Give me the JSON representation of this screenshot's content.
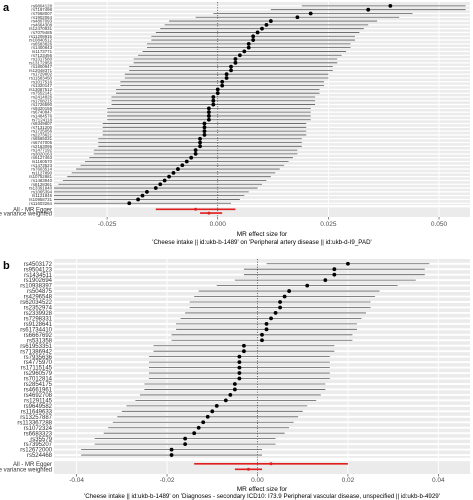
{
  "chart_data": [
    {
      "type": "scatter",
      "panel_label": "a",
      "x_ticks": [
        "-0.025",
        "0.000",
        "0.025",
        "0.050"
      ],
      "xlim": [
        -0.037,
        0.057
      ],
      "xlabel_line1": "MR effect size for",
      "xlabel_line2": "'Cheese intake || id:ukb-b-1489' on 'Peripheral artery disease || id:ukb-d-I9_PAD'",
      "legend": "none",
      "snps": [
        {
          "name": "rs9804128",
          "est": 0.039,
          "lo": 0.019,
          "hi": 0.056
        },
        {
          "name": "rs7197498",
          "est": 0.034,
          "lo": 0.012,
          "hi": 0.056
        },
        {
          "name": "rs7568007",
          "est": 0.021,
          "lo": -0.001,
          "hi": 0.044
        },
        {
          "name": "rs1902064",
          "est": 0.018,
          "lo": -0.005,
          "hi": 0.041
        },
        {
          "name": "rs4807093",
          "est": 0.012,
          "lo": -0.011,
          "hi": 0.036
        },
        {
          "name": "rs4664308",
          "est": 0.011,
          "lo": -0.012,
          "hi": 0.034
        },
        {
          "name": "rs12470931",
          "est": 0.01,
          "lo": -0.013,
          "hi": 0.033
        },
        {
          "name": "rs7079485",
          "est": 0.009,
          "lo": -0.014,
          "hi": 0.032
        },
        {
          "name": "rs11208915",
          "est": 0.008,
          "lo": -0.015,
          "hi": 0.031
        },
        {
          "name": "rs10840512",
          "est": 0.008,
          "lo": -0.015,
          "hi": 0.031
        },
        {
          "name": "rs6583826",
          "est": 0.007,
          "lo": -0.016,
          "hi": 0.03
        },
        {
          "name": "rs1400843",
          "est": 0.007,
          "lo": -0.016,
          "hi": 0.03
        },
        {
          "name": "rs1173771",
          "est": 0.006,
          "lo": -0.017,
          "hi": 0.029
        },
        {
          "name": "rs7123456",
          "est": 0.005,
          "lo": -0.018,
          "hi": 0.028
        },
        {
          "name": "rs1317580",
          "est": 0.004,
          "lo": -0.019,
          "hi": 0.027
        },
        {
          "name": "rs13172958",
          "est": 0.004,
          "lo": -0.019,
          "hi": 0.027
        },
        {
          "name": "rs1800947",
          "est": 0.003,
          "lo": -0.02,
          "hi": 0.026
        },
        {
          "name": "rs12048371",
          "est": 0.003,
          "lo": -0.02,
          "hi": 0.026
        },
        {
          "name": "rs1729802",
          "est": 0.002,
          "lo": -0.021,
          "hi": 0.025
        },
        {
          "name": "rs11583450",
          "est": 0.002,
          "lo": -0.021,
          "hi": 0.025
        },
        {
          "name": "rs1017516",
          "est": 0.001,
          "lo": -0.022,
          "hi": 0.024
        },
        {
          "name": "rs1320147",
          "est": 0.001,
          "lo": -0.022,
          "hi": 0.024
        },
        {
          "name": "rs13087512",
          "est": 0.0,
          "lo": -0.023,
          "hi": 0.023
        },
        {
          "name": "rs7552141",
          "est": 0.0,
          "lo": -0.023,
          "hi": 0.023
        },
        {
          "name": "rs2414826",
          "est": -0.001,
          "lo": -0.024,
          "hi": 0.022
        },
        {
          "name": "rs1708215",
          "est": -0.001,
          "lo": -0.024,
          "hi": 0.022
        },
        {
          "name": "rs1726590",
          "est": -0.001,
          "lo": -0.024,
          "hi": 0.022
        },
        {
          "name": "rs9320156",
          "est": -0.002,
          "lo": -0.025,
          "hi": 0.021
        },
        {
          "name": "rs6740847",
          "est": -0.002,
          "lo": -0.025,
          "hi": 0.021
        },
        {
          "name": "rs1484576",
          "est": -0.002,
          "lo": -0.025,
          "hi": 0.021
        },
        {
          "name": "rs7124118",
          "est": -0.002,
          "lo": -0.025,
          "hi": 0.021
        },
        {
          "name": "rs9349807",
          "est": -0.003,
          "lo": -0.026,
          "hi": 0.02
        },
        {
          "name": "rs7131200",
          "est": -0.003,
          "lo": -0.026,
          "hi": 0.02
        },
        {
          "name": "rs1725056",
          "est": -0.003,
          "lo": -0.026,
          "hi": 0.02
        },
        {
          "name": "rs2273621",
          "est": -0.003,
          "lo": -0.026,
          "hi": 0.02
        },
        {
          "name": "rs6585031",
          "est": -0.004,
          "lo": -0.027,
          "hi": 0.019
        },
        {
          "name": "rs6747005",
          "est": -0.004,
          "lo": -0.027,
          "hi": 0.019
        },
        {
          "name": "rs2163095",
          "est": -0.004,
          "lo": -0.027,
          "hi": 0.019
        },
        {
          "name": "rs1477192",
          "est": -0.005,
          "lo": -0.028,
          "hi": 0.018
        },
        {
          "name": "rs3020163",
          "est": -0.005,
          "lo": -0.028,
          "hi": 0.018
        },
        {
          "name": "rs6127463",
          "est": -0.006,
          "lo": -0.029,
          "hi": 0.017
        },
        {
          "name": "rs1160570",
          "est": -0.007,
          "lo": -0.03,
          "hi": 0.016
        },
        {
          "name": "rs1473523",
          "est": -0.008,
          "lo": -0.031,
          "hi": 0.015
        },
        {
          "name": "rs7603514",
          "est": -0.009,
          "lo": -0.032,
          "hi": 0.014
        },
        {
          "name": "rs1127890",
          "est": -0.01,
          "lo": -0.033,
          "hi": 0.013
        },
        {
          "name": "rs10752881",
          "est": -0.011,
          "lo": -0.034,
          "hi": 0.012
        },
        {
          "name": "rs1483940",
          "est": -0.012,
          "lo": -0.035,
          "hi": 0.011
        },
        {
          "name": "rs6128361",
          "est": -0.013,
          "lo": -0.036,
          "hi": 0.01
        },
        {
          "name": "rs13391840",
          "est": -0.014,
          "lo": -0.037,
          "hi": 0.009
        },
        {
          "name": "rs1065394",
          "est": -0.016,
          "lo": -0.037,
          "hi": 0.007
        },
        {
          "name": "rs1121845",
          "est": -0.017,
          "lo": -0.037,
          "hi": 0.006
        },
        {
          "name": "rs10958731",
          "est": -0.018,
          "lo": -0.037,
          "hi": 0.005
        },
        {
          "name": "rs11603264",
          "est": -0.02,
          "lo": -0.037,
          "hi": 0.003
        }
      ],
      "summary": [
        {
          "name": "All - MR Egger",
          "est": -0.005,
          "lo": -0.014,
          "hi": 0.004
        },
        {
          "name": "All - Inverse variance weighted",
          "est": -0.002,
          "lo": -0.004,
          "hi": 0.001
        }
      ],
      "colors": {
        "points": "#000000",
        "ci": "#595959",
        "summary": "#e01e1e",
        "panel": "#ebebeb",
        "grid": "#ffffff"
      }
    },
    {
      "type": "scatter",
      "panel_label": "b",
      "x_ticks": [
        "-0.04",
        "-0.02",
        "0.00",
        "0.02",
        "0.04"
      ],
      "xlim": [
        -0.045,
        0.047
      ],
      "xlabel_line1": "MR effect size for",
      "xlabel_line2": "'Cheese intake || id:ukb-b-1489' on 'Diagnoses - secondary ICD10: I73.9 Peripheral vascular disease, unspecified || id:ukb-b-4929'",
      "legend": "none",
      "snps": [
        {
          "name": "rs4503172",
          "est": 0.02,
          "lo": 0.002,
          "hi": 0.038
        },
        {
          "name": "rs9504123",
          "est": 0.017,
          "lo": -0.003,
          "hi": 0.037
        },
        {
          "name": "rs1434511",
          "est": 0.017,
          "lo": -0.003,
          "hi": 0.037
        },
        {
          "name": "rs1902694",
          "est": 0.015,
          "lo": -0.005,
          "hi": 0.035
        },
        {
          "name": "rs10938397",
          "est": 0.011,
          "lo": -0.009,
          "hi": 0.031
        },
        {
          "name": "rs504875",
          "est": 0.007,
          "lo": -0.013,
          "hi": 0.027
        },
        {
          "name": "rs4296548",
          "est": 0.006,
          "lo": -0.014,
          "hi": 0.026
        },
        {
          "name": "rs62034522",
          "est": 0.005,
          "lo": -0.015,
          "hi": 0.025
        },
        {
          "name": "rs2352974",
          "est": 0.005,
          "lo": -0.015,
          "hi": 0.025
        },
        {
          "name": "rs2339928",
          "est": 0.004,
          "lo": -0.016,
          "hi": 0.024
        },
        {
          "name": "rs7298331",
          "est": 0.003,
          "lo": -0.017,
          "hi": 0.023
        },
        {
          "name": "rs9128641",
          "est": 0.002,
          "lo": -0.018,
          "hi": 0.022
        },
        {
          "name": "rs61734410",
          "est": 0.002,
          "lo": -0.018,
          "hi": 0.022
        },
        {
          "name": "rs6667692",
          "est": 0.001,
          "lo": -0.019,
          "hi": 0.021
        },
        {
          "name": "rs531358",
          "est": 0.001,
          "lo": -0.019,
          "hi": 0.021
        },
        {
          "name": "rs61953351",
          "est": -0.003,
          "lo": -0.023,
          "hi": 0.017
        },
        {
          "name": "rs71386942",
          "est": -0.003,
          "lo": -0.023,
          "hi": 0.017
        },
        {
          "name": "rs7935636",
          "est": -0.004,
          "lo": -0.024,
          "hi": 0.016
        },
        {
          "name": "rs4775970",
          "est": -0.004,
          "lo": -0.024,
          "hi": 0.016
        },
        {
          "name": "rs17115145",
          "est": -0.004,
          "lo": -0.024,
          "hi": 0.016
        },
        {
          "name": "rs2960579",
          "est": -0.004,
          "lo": -0.024,
          "hi": 0.016
        },
        {
          "name": "rs7012814",
          "est": -0.004,
          "lo": -0.024,
          "hi": 0.016
        },
        {
          "name": "rs2854175",
          "est": -0.005,
          "lo": -0.025,
          "hi": 0.015
        },
        {
          "name": "rs4661961",
          "est": -0.005,
          "lo": -0.025,
          "hi": 0.015
        },
        {
          "name": "rs4692708",
          "est": -0.006,
          "lo": -0.026,
          "hi": 0.014
        },
        {
          "name": "rs1291145",
          "est": -0.007,
          "lo": -0.027,
          "hi": 0.013
        },
        {
          "name": "rs9649582",
          "est": -0.009,
          "lo": -0.029,
          "hi": 0.011
        },
        {
          "name": "rs11649633",
          "est": -0.01,
          "lo": -0.03,
          "hi": 0.01
        },
        {
          "name": "rs13257887",
          "est": -0.011,
          "lo": -0.031,
          "hi": 0.009
        },
        {
          "name": "rs113367288",
          "est": -0.012,
          "lo": -0.032,
          "hi": 0.008
        },
        {
          "name": "rs1072324",
          "est": -0.013,
          "lo": -0.033,
          "hi": 0.007
        },
        {
          "name": "rs6683323",
          "est": -0.014,
          "lo": -0.034,
          "hi": 0.006
        },
        {
          "name": "rs35579",
          "est": -0.016,
          "lo": -0.036,
          "hi": 0.004
        },
        {
          "name": "rs7395207",
          "est": -0.016,
          "lo": -0.036,
          "hi": 0.004
        },
        {
          "name": "rs12672000",
          "est": -0.019,
          "lo": -0.039,
          "hi": 0.001
        },
        {
          "name": "rs524468",
          "est": -0.019,
          "lo": -0.039,
          "hi": 0.001
        }
      ],
      "summary": [
        {
          "name": "All - MR Egger",
          "est": 0.003,
          "lo": -0.014,
          "hi": 0.02
        },
        {
          "name": "All - Inverse variance weighted",
          "est": -0.002,
          "lo": -0.005,
          "hi": 0.001
        }
      ],
      "colors": {
        "points": "#000000",
        "ci": "#595959",
        "summary": "#e01e1e",
        "panel": "#ebebeb",
        "grid": "#ffffff"
      }
    }
  ]
}
